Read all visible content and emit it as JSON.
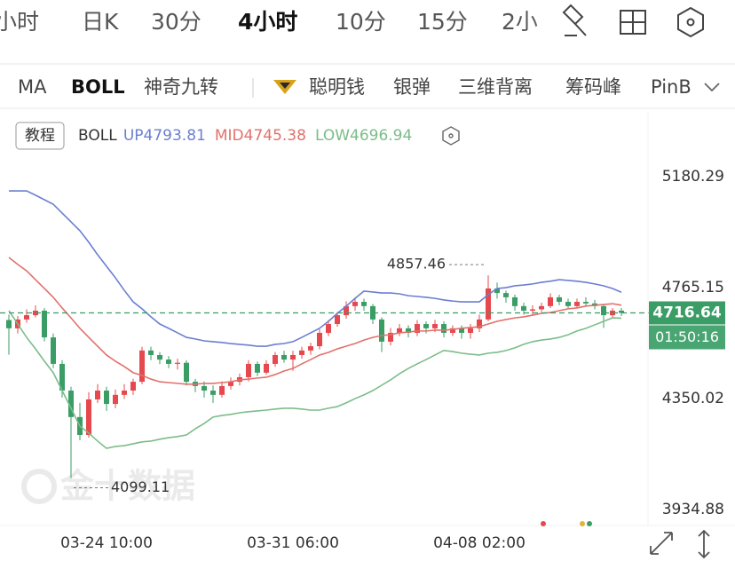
{
  "tabs": [
    "小时",
    "日K",
    "30分",
    "4小时",
    "10分",
    "15分",
    "2小"
  ],
  "indicators": [
    "MA",
    "BOLL",
    "神奇九转",
    "聪明钱",
    "银弹",
    "三维背离",
    "筹码峰",
    "PinB"
  ],
  "tutorial": "教程",
  "watermark": "金十数据",
  "chart_data": {
    "type": "candlestick",
    "indicator": "BOLL",
    "categories": [
      null,
      null,
      null,
      null,
      null,
      null,
      null,
      null,
      null,
      null,
      null,
      "03-24 10:00",
      null,
      null,
      null,
      null,
      null,
      null,
      null,
      null,
      null,
      null,
      null,
      null,
      null,
      null,
      null,
      null,
      null,
      null,
      null,
      null,
      "03-31 06:00",
      null,
      null,
      null,
      null,
      null,
      null,
      null,
      null,
      null,
      null,
      null,
      null,
      null,
      null,
      null,
      null,
      null,
      null,
      null,
      null,
      "04-08 02:00",
      null,
      null,
      null,
      null,
      null,
      null,
      null,
      null,
      null,
      null,
      null,
      null,
      null,
      null,
      null,
      null
    ],
    "candles": {
      "open": [
        4690,
        4659,
        4692,
        4708,
        4725,
        4625,
        4526,
        4426,
        4327,
        4260,
        4393,
        4426,
        4376,
        4410,
        4426,
        4459,
        4576,
        4559,
        4542,
        4526,
        4530,
        4459,
        4443,
        4426,
        4410,
        4443,
        4459,
        4476,
        4526,
        4493,
        4526,
        4559,
        4542,
        4559,
        4576,
        4592,
        4642,
        4675,
        4708,
        4742,
        4758,
        4742,
        4692,
        4609,
        4642,
        4659,
        4642,
        4675,
        4659,
        4675,
        4642,
        4659,
        4642,
        4659,
        4692,
        4808,
        4791,
        4775,
        4742,
        4725,
        4730,
        4742,
        4775,
        4758,
        4742,
        4758,
        4752,
        4742,
        4708,
        4725
      ],
      "high": [
        4710,
        4705,
        4730,
        4745,
        4735,
        4640,
        4540,
        4440,
        4380,
        4420,
        4450,
        4440,
        4430,
        4450,
        4470,
        4590,
        4590,
        4570,
        4555,
        4545,
        4540,
        4470,
        4460,
        4445,
        4460,
        4475,
        4490,
        4540,
        4535,
        4540,
        4570,
        4575,
        4575,
        4590,
        4605,
        4655,
        4690,
        4720,
        4760,
        4775,
        4770,
        4750,
        4700,
        4660,
        4675,
        4670,
        4690,
        4685,
        4690,
        4685,
        4670,
        4670,
        4675,
        4710,
        4857.46,
        4830,
        4800,
        4785,
        4755,
        4745,
        4755,
        4790,
        4785,
        4770,
        4770,
        4775,
        4765,
        4750,
        4735,
        4735
      ],
      "low": [
        4560,
        4640,
        4680,
        4700,
        4610,
        4510,
        4400,
        4099.11,
        4240,
        4250,
        4380,
        4350,
        4360,
        4395,
        4410,
        4450,
        4540,
        4525,
        4510,
        4505,
        4445,
        4420,
        4400,
        4380,
        4400,
        4430,
        4445,
        4460,
        4480,
        4485,
        4515,
        4530,
        4500,
        4545,
        4560,
        4580,
        4630,
        4665,
        4695,
        4725,
        4725,
        4675,
        4570,
        4595,
        4630,
        4625,
        4630,
        4640,
        4645,
        4625,
        4630,
        4620,
        4620,
        4645,
        4685,
        4770,
        4755,
        4725,
        4710,
        4710,
        4720,
        4735,
        4745,
        4730,
        4735,
        4740,
        4730,
        4660,
        4700,
        4705
      ],
      "close": [
        4659,
        4692,
        4708,
        4725,
        4625,
        4526,
        4426,
        4327,
        4260,
        4393,
        4426,
        4376,
        4410,
        4426,
        4459,
        4576,
        4559,
        4542,
        4526,
        4530,
        4459,
        4443,
        4426,
        4410,
        4443,
        4459,
        4476,
        4526,
        4493,
        4526,
        4559,
        4542,
        4559,
        4576,
        4592,
        4642,
        4675,
        4708,
        4742,
        4758,
        4742,
        4692,
        4609,
        4642,
        4659,
        4642,
        4675,
        4659,
        4675,
        4642,
        4659,
        4642,
        4659,
        4692,
        4808,
        4791,
        4775,
        4742,
        4725,
        4730,
        4742,
        4775,
        4758,
        4742,
        4758,
        4752,
        4742,
        4708,
        4725,
        4716.64
      ]
    },
    "up_color": "#e5484d",
    "down_color": "#3a9d66",
    "series": [
      {
        "name": "UP",
        "color": "#6b7fd1",
        "values": [
          5173,
          5173,
          5173,
          5157,
          5140,
          5123,
          5090,
          5057,
          5024,
          4981,
          4934,
          4891,
          4848,
          4801,
          4758,
          4732,
          4702,
          4675,
          4659,
          4642,
          4625,
          4619,
          4612,
          4609,
          4606,
          4602,
          4599,
          4596,
          4592,
          4592,
          4599,
          4602,
          4609,
          4625,
          4642,
          4659,
          4685,
          4715,
          4742,
          4771,
          4798,
          4795,
          4791,
          4791,
          4788,
          4781,
          4778,
          4775,
          4771,
          4765,
          4761,
          4758,
          4758,
          4758,
          4785,
          4808,
          4811,
          4818,
          4821,
          4825,
          4831,
          4835,
          4841,
          4838,
          4835,
          4831,
          4825,
          4818,
          4808,
          4793.81
        ]
      },
      {
        "name": "MID",
        "color": "#e2716b",
        "values": [
          4924,
          4898,
          4874,
          4841,
          4808,
          4775,
          4735,
          4698,
          4659,
          4625,
          4592,
          4559,
          4536,
          4516,
          4493,
          4483,
          4469,
          4459,
          4456,
          4453,
          4450,
          4450,
          4453,
          4453,
          4456,
          4459,
          4466,
          4469,
          4473,
          4476,
          4486,
          4499,
          4509,
          4526,
          4542,
          4559,
          4569,
          4582,
          4592,
          4602,
          4615,
          4625,
          4632,
          4635,
          4642,
          4645,
          4649,
          4649,
          4652,
          4652,
          4655,
          4659,
          4662,
          4665,
          4675,
          4685,
          4692,
          4698,
          4702,
          4708,
          4715,
          4718,
          4725,
          4732,
          4735,
          4742,
          4745,
          4748,
          4751,
          4745.38
        ]
      },
      {
        "name": "LOW",
        "color": "#7bbd88",
        "values": [
          4725,
          4675,
          4625,
          4582,
          4536,
          4493,
          4426,
          4360,
          4293,
          4267,
          4237,
          4210,
          4217,
          4220,
          4227,
          4234,
          4237,
          4244,
          4250,
          4254,
          4260,
          4283,
          4303,
          4327,
          4333,
          4337,
          4343,
          4347,
          4350,
          4353,
          4357,
          4360,
          4360,
          4357,
          4353,
          4353,
          4360,
          4366,
          4380,
          4396,
          4410,
          4426,
          4446,
          4466,
          4489,
          4509,
          4526,
          4542,
          4559,
          4576,
          4572,
          4566,
          4562,
          4559,
          4566,
          4569,
          4576,
          4586,
          4599,
          4609,
          4615,
          4619,
          4625,
          4635,
          4649,
          4659,
          4672,
          4685,
          4698,
          4696.94
        ]
      }
    ],
    "ylim": [
      3928,
      5306
    ],
    "yticks": [
      3934.88,
      4350.02,
      4765.15,
      5180.29
    ],
    "countdown": "01:50:16",
    "price_line_color": "#3a9d66"
  }
}
